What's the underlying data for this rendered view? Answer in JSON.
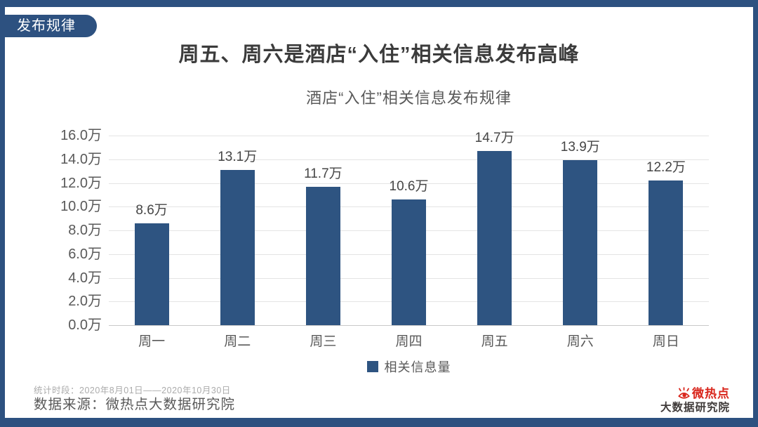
{
  "badge": {
    "label": "发布规律"
  },
  "title": "周五、周六是酒店“入住”相关信息发布高峰",
  "footer": {
    "period": "统计时段：2020年8月01日——2020年10月30日",
    "source": "数据来源：微热点大数据研究院"
  },
  "logo": {
    "brand": "微热点",
    "org": "大数据研究院"
  },
  "colors": {
    "bar_blue": "#2E5481",
    "frame_blue": "#2D5180",
    "logo_red": "#D9261C"
  },
  "chart_data": {
    "type": "bar",
    "title": "酒店“入住”相关信息发布规律",
    "categories": [
      "周一",
      "周二",
      "周三",
      "周四",
      "周五",
      "周六",
      "周日"
    ],
    "values": [
      8.6,
      13.1,
      11.7,
      10.6,
      14.7,
      13.9,
      12.2
    ],
    "value_labels": [
      "8.6万",
      "13.1万",
      "11.7万",
      "10.6万",
      "14.7万",
      "13.9万",
      "12.2万"
    ],
    "unit": "万",
    "xlabel": "",
    "ylabel": "",
    "ylim": [
      0,
      16
    ],
    "ytick_step": 2,
    "yticks": [
      "16.0万",
      "14.0万",
      "12.0万",
      "10.0万",
      "8.0万",
      "6.0万",
      "4.0万",
      "2.0万",
      "0.0万"
    ],
    "grid": true,
    "legend": {
      "label": "相关信息量",
      "position": "bottom"
    }
  }
}
